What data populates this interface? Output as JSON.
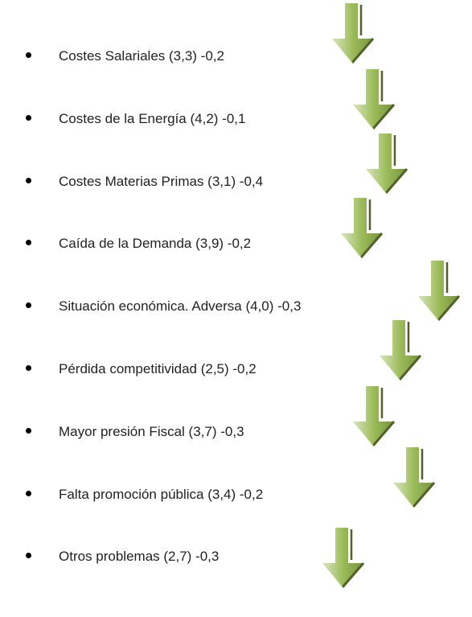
{
  "items": [
    "Costes Salariales (3,3) -0,2",
    "Costes de la Energía (4,2)   -0,1",
    "Costes Materias Primas (3,1) -0,4",
    "Caída de la Demanda (3,9) -0,2",
    "Situación económica. Adversa (4,0) -0,3",
    "Pérdida competitividad (2,5) -0,2",
    "Mayor presión Fiscal (3,7)  -0,3",
    "Falta promoción pública (3,4)  -0,2",
    "Otros problemas (2,7)  -0,3"
  ]
}
